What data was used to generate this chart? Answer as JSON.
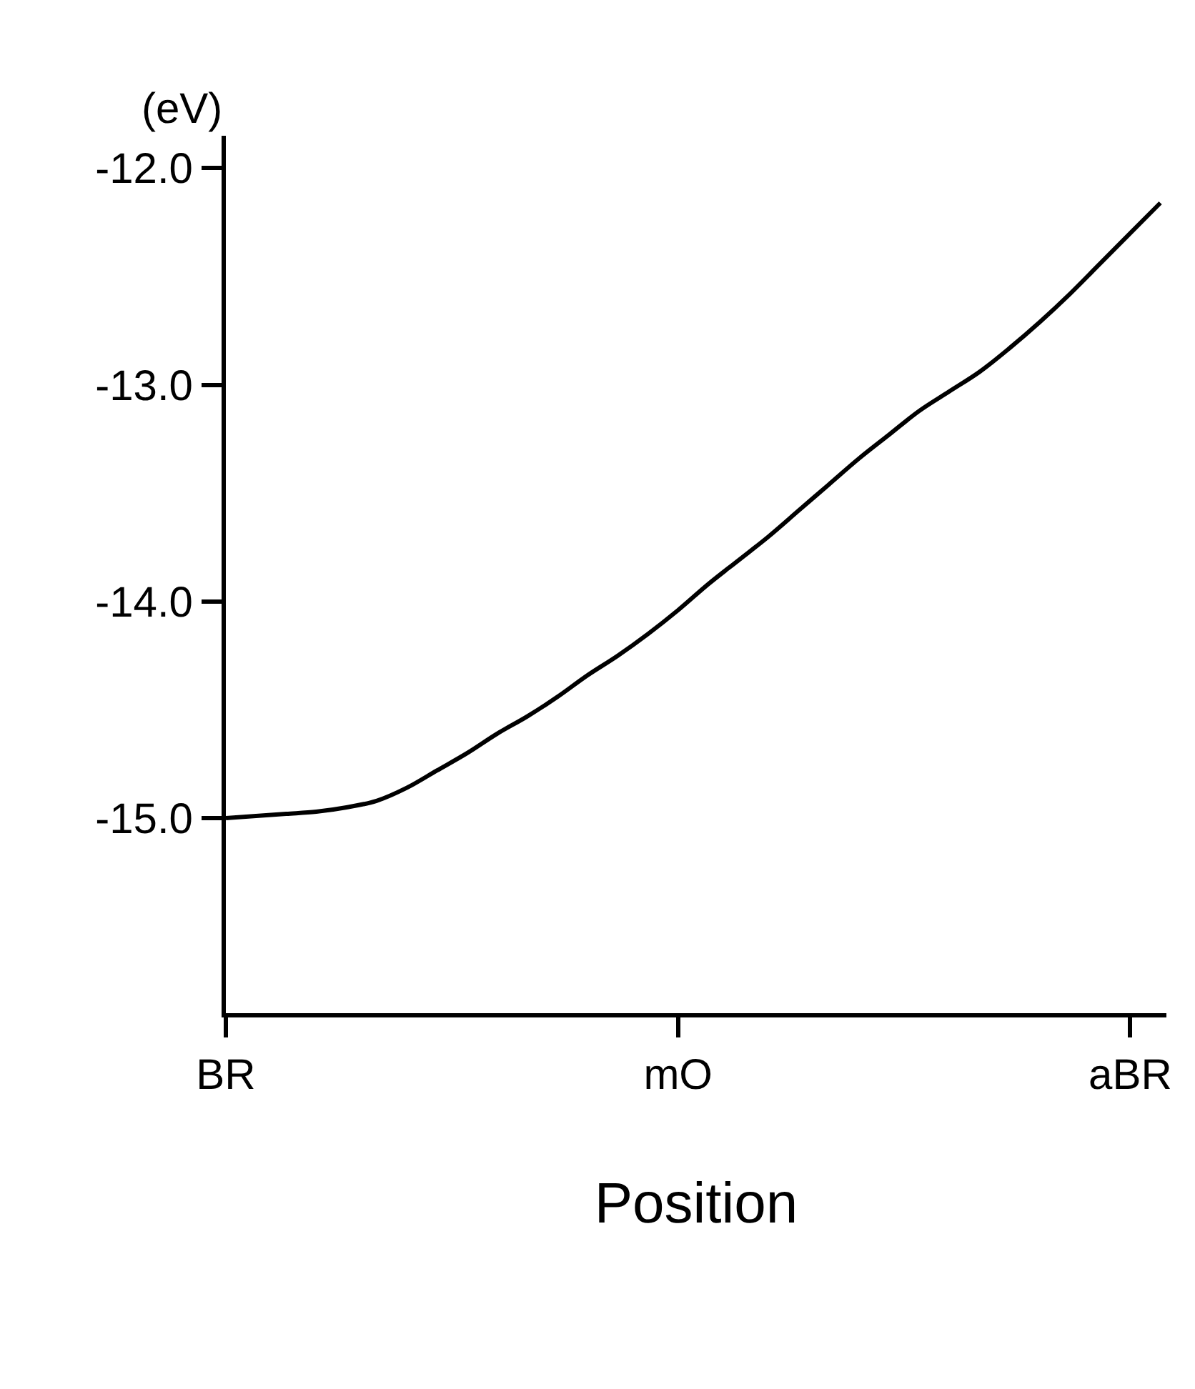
{
  "chart_data": {
    "type": "line",
    "ylabel": "(eV)",
    "xlabel": "Position",
    "categories": [
      "BR",
      null,
      null,
      null,
      null,
      null,
      null,
      null,
      null,
      null,
      null,
      null,
      null,
      null,
      null,
      "mO",
      null,
      null,
      null,
      null,
      null,
      null,
      null,
      null,
      null,
      null,
      null,
      null,
      null,
      null,
      "aBR",
      null
    ],
    "series": [
      {
        "color": "#000000",
        "values": [
          -15.0,
          -14.99,
          -14.98,
          -14.97,
          -14.95,
          -14.92,
          -14.86,
          -14.78,
          -14.7,
          -14.61,
          -14.53,
          -14.44,
          -14.34,
          -14.25,
          -14.15,
          -14.04,
          -13.92,
          -13.81,
          -13.7,
          -13.58,
          -13.46,
          -13.34,
          -13.23,
          -13.12,
          -13.03,
          -12.94,
          -12.83,
          -12.71,
          -12.58,
          -12.44,
          -12.3,
          -12.16
        ]
      }
    ],
    "ylim": [
      -15.9,
      -11.85
    ],
    "yticks": [
      {
        "value": -15,
        "label": "-15.0"
      },
      {
        "value": -14,
        "label": "-14.0"
      },
      {
        "value": -13,
        "label": "-13.0"
      },
      {
        "value": -12,
        "label": "-12.0"
      }
    ],
    "marker": "none",
    "line_style": "solid"
  }
}
